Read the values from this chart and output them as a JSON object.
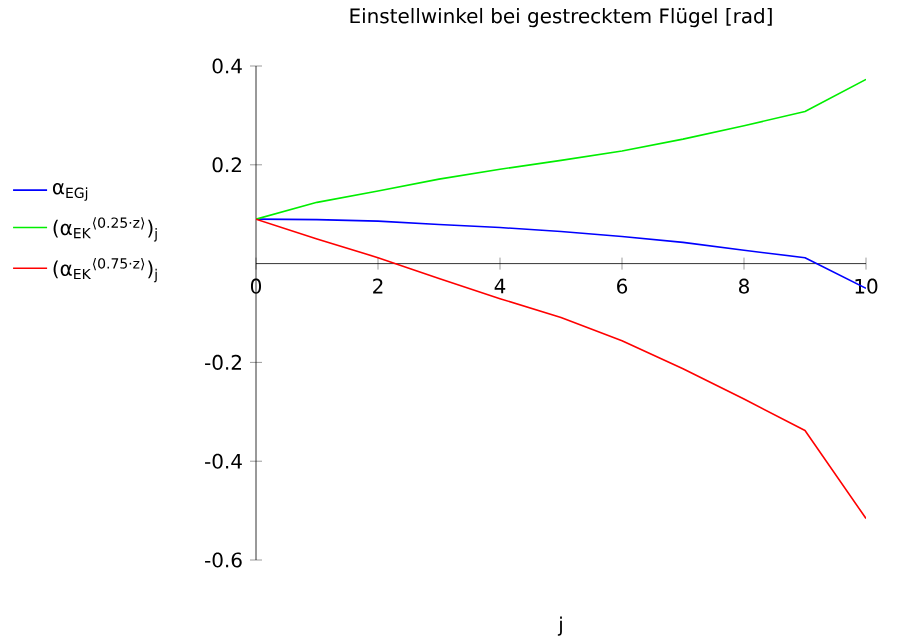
{
  "chart_data": {
    "type": "line",
    "title": "Einstellwinkel bei gestrecktem Flügel [rad]",
    "xlabel": "j",
    "x": [
      0,
      1,
      2,
      3,
      4,
      5,
      6,
      7,
      8,
      9,
      10
    ],
    "xlim": [
      0,
      10
    ],
    "ylim": [
      -0.6,
      0.4
    ],
    "xticks": [
      0,
      2,
      4,
      6,
      8,
      10
    ],
    "yticks": [
      -0.6,
      -0.4,
      -0.2,
      0.2,
      0.4
    ],
    "grid": false,
    "legend": "left",
    "marker": "none",
    "line_style": "solid",
    "series": [
      {
        "name": "α$_{EGj}$",
        "color": "#0000ff",
        "values": [
          0.09,
          0.089,
          0.086,
          0.079,
          0.073,
          0.065,
          0.055,
          0.043,
          0.027,
          0.012,
          -0.05
        ]
      },
      {
        "name": "(α$_{EK}$$^{⟨0.25·z⟩}$)$_{j}$",
        "color": "#00ee00",
        "values": [
          0.09,
          0.124,
          0.147,
          0.171,
          0.191,
          0.209,
          0.228,
          0.252,
          0.279,
          0.308,
          0.373
        ]
      },
      {
        "name": "(α$_{EK}$$^{⟨0.75·z⟩}$)$_{j}$",
        "color": "#ff0000",
        "values": [
          0.09,
          0.05,
          0.012,
          -0.03,
          -0.071,
          -0.109,
          -0.156,
          -0.213,
          -0.274,
          -0.338,
          -0.516
        ]
      }
    ]
  }
}
